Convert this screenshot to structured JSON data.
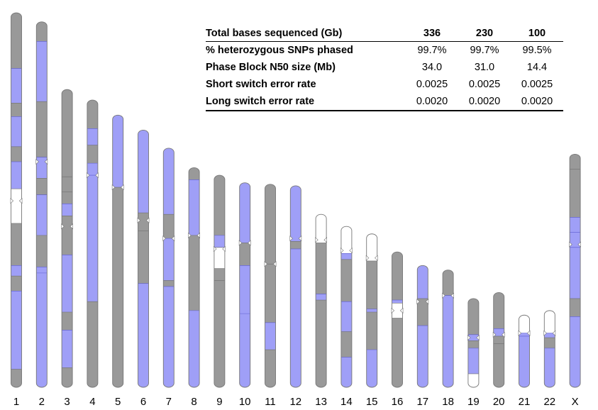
{
  "colors": {
    "phased": "#9f9ff7",
    "unphased": "#999999",
    "unsequenced": "#ffffff",
    "outline": "#777777",
    "thin_line": "#5a5ad0"
  },
  "table": {
    "header": {
      "label": "Total bases sequenced (Gb)",
      "values": [
        "336",
        "230",
        "100"
      ]
    },
    "rows": [
      {
        "label": "% heterozygous SNPs phased",
        "values": [
          "99.7%",
          "99.7%",
          "99.5%"
        ]
      },
      {
        "label": "Phase Block N50 size (Mb)",
        "values": [
          "34.0",
          "31.0",
          "14.4"
        ]
      },
      {
        "label": "Short switch error rate",
        "values": [
          "0.0025",
          "0.0025",
          "0.0025"
        ]
      },
      {
        "label": "Long switch error rate",
        "values": [
          "0.0020",
          "0.0020",
          "0.0020"
        ]
      }
    ]
  },
  "chromosomes": [
    {
      "label": "1",
      "length": 249,
      "centromere": 125,
      "segments": [
        [
          0,
          37,
          "unphased"
        ],
        [
          37,
          60,
          "phased"
        ],
        [
          60,
          69,
          "unphased"
        ],
        [
          69,
          89,
          "phased"
        ],
        [
          89,
          99,
          "unphased"
        ],
        [
          99,
          117,
          "phased"
        ],
        [
          117,
          140,
          "unsequenced"
        ],
        [
          140,
          168,
          "unphased"
        ],
        [
          168,
          175,
          "phased"
        ],
        [
          175,
          185,
          "unphased"
        ],
        [
          185,
          237,
          "phased"
        ],
        [
          237,
          249,
          "unphased"
        ]
      ]
    },
    {
      "label": "2",
      "length": 243,
      "centromere": 93,
      "segments": [
        [
          0,
          13,
          "unphased"
        ],
        [
          13,
          53,
          "phased"
        ],
        [
          53,
          90,
          "unphased"
        ],
        [
          90,
          104,
          "phased"
        ],
        [
          104,
          115,
          "unphased"
        ],
        [
          115,
          142,
          "phased"
        ],
        [
          142,
          163,
          "unphased"
        ],
        [
          163,
          167,
          "phased"
        ],
        [
          167,
          243,
          "phased"
        ]
      ]
    },
    {
      "label": "3",
      "length": 198,
      "centromere": 91,
      "segments": [
        [
          0,
          58,
          "unphased"
        ],
        [
          58,
          68,
          "unphased"
        ],
        [
          68,
          76,
          "unphased"
        ],
        [
          76,
          84,
          "phased"
        ],
        [
          84,
          110,
          "unphased"
        ],
        [
          110,
          148,
          "phased"
        ],
        [
          148,
          160,
          "unphased"
        ],
        [
          160,
          185,
          "phased"
        ],
        [
          185,
          198,
          "unphased"
        ]
      ]
    },
    {
      "label": "4",
      "length": 191,
      "centromere": 50,
      "segments": [
        [
          0,
          19,
          "unphased"
        ],
        [
          19,
          30,
          "phased"
        ],
        [
          30,
          42,
          "unphased"
        ],
        [
          42,
          50,
          "phased"
        ],
        [
          50,
          134,
          "phased"
        ],
        [
          134,
          191,
          "unphased"
        ]
      ]
    },
    {
      "label": "5",
      "length": 181,
      "centromere": 48,
      "segments": [
        [
          0,
          48,
          "phased"
        ],
        [
          48,
          181,
          "unphased"
        ]
      ]
    },
    {
      "label": "6",
      "length": 171,
      "centromere": 60,
      "segments": [
        [
          0,
          55,
          "phased"
        ],
        [
          55,
          67,
          "unphased"
        ],
        [
          67,
          102,
          "unphased"
        ],
        [
          102,
          171,
          "phased"
        ]
      ]
    },
    {
      "label": "7",
      "length": 159,
      "centromere": 60,
      "segments": [
        [
          0,
          44,
          "phased"
        ],
        [
          44,
          60,
          "unphased"
        ],
        [
          60,
          88,
          "phased"
        ],
        [
          88,
          92,
          "unphased"
        ],
        [
          92,
          159,
          "phased"
        ]
      ]
    },
    {
      "label": "8",
      "length": 146,
      "centromere": 45,
      "segments": [
        [
          0,
          8,
          "unphased"
        ],
        [
          8,
          45,
          "phased"
        ],
        [
          45,
          95,
          "unphased"
        ],
        [
          95,
          146,
          "phased"
        ]
      ]
    },
    {
      "label": "9",
      "length": 141,
      "centromere": 49,
      "segments": [
        [
          0,
          40,
          "unphased"
        ],
        [
          40,
          48,
          "phased"
        ],
        [
          48,
          62,
          "unsequenced"
        ],
        [
          62,
          70,
          "unphased"
        ],
        [
          70,
          141,
          "unphased"
        ]
      ]
    },
    {
      "label": "10",
      "length": 136,
      "centromere": 40,
      "segments": [
        [
          0,
          40,
          "phased"
        ],
        [
          40,
          55,
          "unphased"
        ],
        [
          55,
          87,
          "phased"
        ],
        [
          87,
          136,
          "phased"
        ]
      ]
    },
    {
      "label": "11",
      "length": 135,
      "centromere": 53,
      "segments": [
        [
          0,
          53,
          "unphased"
        ],
        [
          53,
          92,
          "unphased"
        ],
        [
          92,
          110,
          "phased"
        ],
        [
          110,
          135,
          "unphased"
        ]
      ]
    },
    {
      "label": "12",
      "length": 134,
      "centromere": 35,
      "segments": [
        [
          0,
          37,
          "phased"
        ],
        [
          37,
          42,
          "unphased"
        ],
        [
          42,
          134,
          "phased"
        ]
      ]
    },
    {
      "label": "13",
      "length": 115,
      "centromere": 17,
      "segments": [
        [
          0,
          19,
          "unsequenced"
        ],
        [
          19,
          53,
          "unphased"
        ],
        [
          53,
          57,
          "phased"
        ],
        [
          57,
          115,
          "unphased"
        ]
      ]
    },
    {
      "label": "14",
      "length": 107,
      "centromere": 16,
      "segments": [
        [
          0,
          18,
          "unsequenced"
        ],
        [
          18,
          22,
          "phased"
        ],
        [
          22,
          50,
          "unphased"
        ],
        [
          50,
          70,
          "phased"
        ],
        [
          70,
          87,
          "unphased"
        ],
        [
          87,
          107,
          "phased"
        ]
      ]
    },
    {
      "label": "15",
      "length": 102,
      "centromere": 16,
      "segments": [
        [
          0,
          18,
          "unsequenced"
        ],
        [
          18,
          50,
          "unphased"
        ],
        [
          50,
          52,
          "phased"
        ],
        [
          52,
          77,
          "unphased"
        ],
        [
          77,
          102,
          "phased"
        ]
      ]
    },
    {
      "label": "16",
      "length": 90,
      "centromere": 39,
      "segments": [
        [
          0,
          32,
          "unphased"
        ],
        [
          32,
          34,
          "phased"
        ],
        [
          34,
          44,
          "unsequenced"
        ],
        [
          44,
          90,
          "unphased"
        ]
      ]
    },
    {
      "label": "17",
      "length": 81,
      "centromere": 24,
      "segments": [
        [
          0,
          22,
          "phased"
        ],
        [
          22,
          40,
          "unphased"
        ],
        [
          40,
          81,
          "phased"
        ]
      ]
    },
    {
      "label": "18",
      "length": 78,
      "centromere": 17,
      "segments": [
        [
          0,
          17,
          "unphased"
        ],
        [
          17,
          78,
          "phased"
        ]
      ]
    },
    {
      "label": "19",
      "length": 59,
      "centromere": 26,
      "segments": [
        [
          0,
          24,
          "unphased"
        ],
        [
          24,
          28,
          "phased"
        ],
        [
          28,
          33,
          "unphased"
        ],
        [
          33,
          50,
          "phased"
        ],
        [
          50,
          59,
          "unsequenced"
        ]
      ]
    },
    {
      "label": "20",
      "length": 63,
      "centromere": 28,
      "segments": [
        [
          0,
          24,
          "unphased"
        ],
        [
          24,
          29,
          "phased"
        ],
        [
          29,
          34,
          "unphased"
        ],
        [
          34,
          63,
          "unphased"
        ]
      ]
    },
    {
      "label": "21",
      "length": 48,
      "centromere": 12,
      "segments": [
        [
          0,
          12,
          "unsequenced"
        ],
        [
          12,
          14,
          "phased"
        ],
        [
          14,
          48,
          "phased"
        ]
      ]
    },
    {
      "label": "22",
      "length": 51,
      "centromere": 15,
      "segments": [
        [
          0,
          15,
          "unsequenced"
        ],
        [
          15,
          18,
          "phased"
        ],
        [
          18,
          25,
          "unphased"
        ],
        [
          25,
          51,
          "phased"
        ]
      ]
    },
    {
      "label": "X",
      "length": 155,
      "centromere": 60,
      "segments": [
        [
          0,
          10,
          "unphased"
        ],
        [
          10,
          42,
          "unphased"
        ],
        [
          42,
          52,
          "phased"
        ],
        [
          52,
          62,
          "phased"
        ],
        [
          62,
          96,
          "phased"
        ],
        [
          96,
          108,
          "unphased"
        ],
        [
          108,
          155,
          "phased"
        ]
      ]
    }
  ]
}
